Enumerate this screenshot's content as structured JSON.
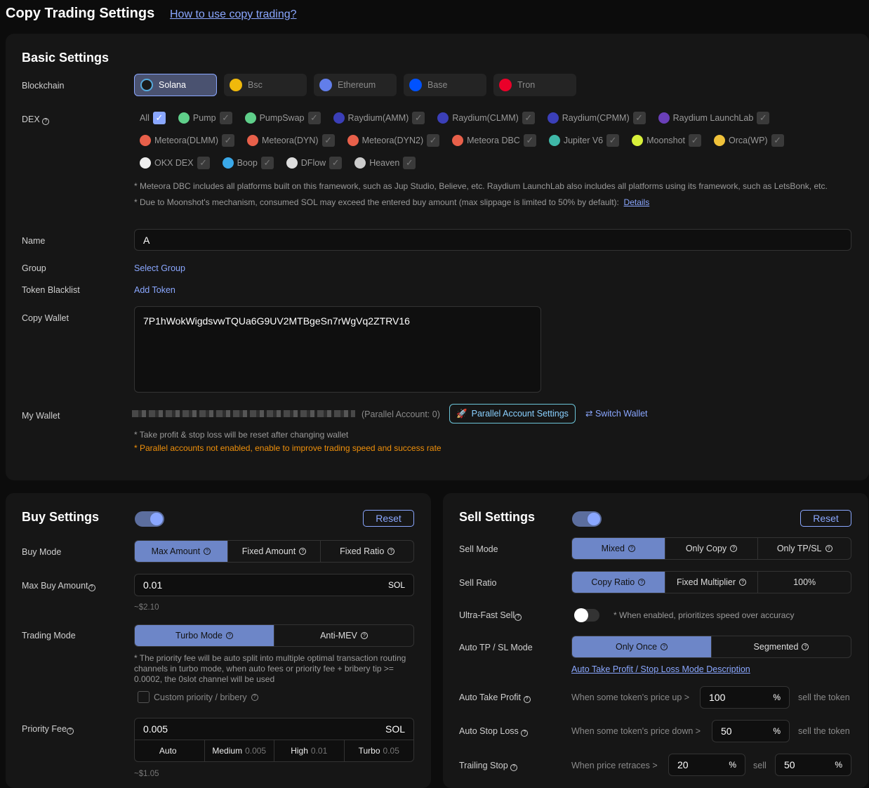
{
  "header": {
    "title": "Copy Trading Settings",
    "help_link": "How to use copy trading?"
  },
  "basic": {
    "title": "Basic Settings",
    "blockchain_label": "Blockchain",
    "chains": [
      {
        "label": "Solana",
        "color": "#1a1a1a",
        "selected": true
      },
      {
        "label": "Bsc",
        "color": "#f0b90b"
      },
      {
        "label": "Ethereum",
        "color": "#627eea"
      },
      {
        "label": "Base",
        "color": "#0052ff"
      },
      {
        "label": "Tron",
        "color": "#eb0029"
      }
    ],
    "dex_label": "DEX",
    "dex_all": "All",
    "dexes": [
      {
        "label": "Pump",
        "color": "#5fcf8a"
      },
      {
        "label": "PumpSwap",
        "color": "#5fcf8a"
      },
      {
        "label": "Raydium(AMM)",
        "color": "#3b3fb8"
      },
      {
        "label": "Raydium(CLMM)",
        "color": "#3b3fb8"
      },
      {
        "label": "Raydium(CPMM)",
        "color": "#3b3fb8"
      },
      {
        "label": "Raydium LaunchLab",
        "color": "#6a3fb8"
      },
      {
        "label": "Meteora(DLMM)",
        "color": "#e8604a"
      },
      {
        "label": "Meteora(DYN)",
        "color": "#e8604a"
      },
      {
        "label": "Meteora(DYN2)",
        "color": "#e8604a"
      },
      {
        "label": "Meteora DBC",
        "color": "#e8604a"
      },
      {
        "label": "Jupiter V6",
        "color": "#3fb8a8"
      },
      {
        "label": "Moonshot",
        "color": "#d8f03a"
      },
      {
        "label": "Orca(WP)",
        "color": "#f0c23a"
      },
      {
        "label": "OKX DEX",
        "color": "#eeeeee"
      },
      {
        "label": "Boop",
        "color": "#3aa8e8"
      },
      {
        "label": "DFlow",
        "color": "#dddddd"
      },
      {
        "label": "Heaven",
        "color": "#cccccc"
      }
    ],
    "note1": "* Meteora DBC includes all platforms built on this framework, such as Jup Studio, Believe, etc. Raydium LaunchLab also includes all platforms using its framework, such as LetsBonk, etc.",
    "note2": "* Due to Moonshot's mechanism, consumed SOL may exceed the entered buy amount (max slippage is limited to 50% by default):",
    "details": "Details",
    "name_label": "Name",
    "name_value": "A",
    "group_label": "Group",
    "group_action": "Select Group",
    "blacklist_label": "Token Blacklist",
    "blacklist_action": "Add Token",
    "copy_wallet_label": "Copy Wallet",
    "copy_wallet_value": "7P1hWokWigdsvwTQUa6G9UV2MTBgeSn7rWgVq2ZTRV16",
    "my_wallet_label": "My Wallet",
    "parallel_count": "(Parallel Account: 0)",
    "parallel_button": "Parallel Account Settings",
    "switch_wallet": "Switch Wallet",
    "wallet_note": "* Take profit & stop loss will be reset after changing wallet",
    "parallel_warning": "* Parallel accounts not enabled, enable to improve trading speed and success rate",
    "warning_color": "#f0900a"
  },
  "buy": {
    "title": "Buy Settings",
    "enabled": true,
    "reset": "Reset",
    "mode_label": "Buy Mode",
    "modes": [
      "Max Amount",
      "Fixed Amount",
      "Fixed Ratio"
    ],
    "max_label": "Max Buy Amount",
    "max_value": "0.01",
    "unit": "SOL",
    "max_usd": "~$2.10",
    "trading_label": "Trading Mode",
    "trading_modes": [
      "Turbo Mode",
      "Anti-MEV"
    ],
    "turbo_note": "* The priority fee will be auto split into multiple optimal transaction routing channels in turbo mode, when auto fees or priority fee + bribery tip >= 0.0002, the 0slot channel will be used",
    "custom_label": "Custom priority / bribery",
    "fee_label": "Priority Fee",
    "fee_value": "0.005",
    "fee_presets": [
      {
        "label": "Auto",
        "value": ""
      },
      {
        "label": "Medium",
        "value": "0.005"
      },
      {
        "label": "High",
        "value": "0.01"
      },
      {
        "label": "Turbo",
        "value": "0.05"
      }
    ],
    "fee_usd": "~$1.05"
  },
  "sell": {
    "title": "Sell Settings",
    "enabled": true,
    "reset": "Reset",
    "mode_label": "Sell Mode",
    "modes": [
      "Mixed",
      "Only Copy",
      "Only TP/SL"
    ],
    "ratio_label": "Sell Ratio",
    "ratios": [
      "Copy Ratio",
      "Fixed Multiplier",
      "100%"
    ],
    "ultra_label": "Ultra-Fast Sell",
    "ultra_enabled": false,
    "ultra_note": "* When enabled, prioritizes speed over accuracy",
    "tpsl_label": "Auto TP / SL Mode",
    "tpsl_modes": [
      "Only Once",
      "Segmented"
    ],
    "tpsl_link": "Auto Take Profit / Stop Loss Mode Description",
    "tp_label": "Auto Take Profit",
    "tp_text": "When some token's price up >",
    "tp_value": "100",
    "pct": "%",
    "sell_token": "sell the token",
    "sl_label": "Auto Stop Loss",
    "sl_text": "When some token's price down >",
    "sl_value": "50",
    "trail_label": "Trailing Stop",
    "trail_text": "When price retraces >",
    "trail_value": "20",
    "trail_sell": "sell",
    "trail_sell_value": "50"
  }
}
